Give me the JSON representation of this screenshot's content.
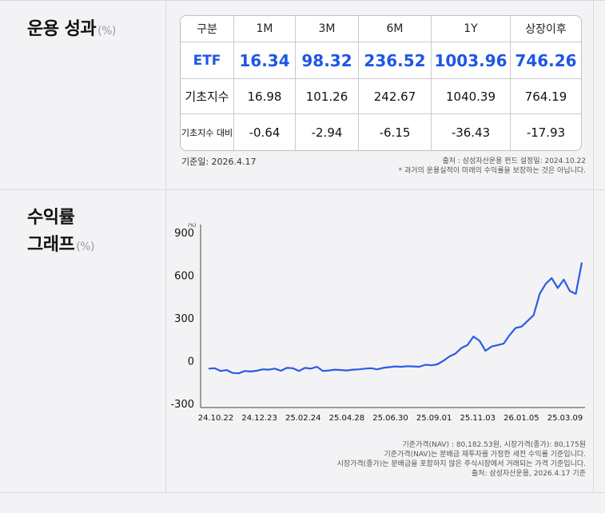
{
  "performance": {
    "title": "운용 성과",
    "unit": "(%)",
    "headers": [
      "구분",
      "1M",
      "3M",
      "6M",
      "1Y",
      "상장이후"
    ],
    "rows": [
      {
        "label": "ETF",
        "values": [
          "16.34",
          "98.32",
          "236.52",
          "1003.96",
          "746.26"
        ]
      },
      {
        "label": "기초지수",
        "values": [
          "16.98",
          "101.26",
          "242.67",
          "1040.39",
          "764.19"
        ]
      },
      {
        "label": "기초지수 대비",
        "values": [
          "-0.64",
          "-2.94",
          "-6.15",
          "-36.43",
          "-17.93"
        ]
      }
    ],
    "base_date": "기준일: 2026.4.17",
    "source_note": "출처 : 삼성자산운용  펀드 설정일: 2024.10.22",
    "disclaimer": "* 과거의 운용실적이 미래의 수익률을 보장하는 것은 아닙니다."
  },
  "graph": {
    "title_line1": "수익률",
    "title_line2": "그래프",
    "unit": "(%)",
    "notes": [
      "기준가격(NAV) : 80,182.53원, 시장가격(종가): 80,175원",
      "기준가격(NAV)는 분배금 재투자를 가정한 세전 수익률 기준입니다.",
      "시장가격(종가)는 분배금을 포함하지 않은 주식시장에서 거래되는 가격 기준입니다.",
      "출처: 삼성자산운용, 2026.4.17 기준"
    ]
  },
  "chart_data": {
    "type": "line",
    "ylabel": "(%)",
    "ylim": [
      -300,
      900
    ],
    "yticks": [
      900,
      600,
      300,
      0,
      -300
    ],
    "xticks": [
      "24.10.22",
      "24.12.23",
      "25.02.24",
      "25.04.28",
      "25.06.30",
      "25.09.01",
      "25.11.03",
      "26.01.05",
      "25.03.09"
    ],
    "grid": false,
    "color": "#2b5ce6",
    "series": [
      {
        "values": [
          -55,
          -52,
          -72,
          -65,
          -85,
          -88,
          -72,
          -75,
          -70,
          -60,
          -62,
          -55,
          -70,
          -50,
          -52,
          -72,
          -50,
          -55,
          -42,
          -72,
          -68,
          -62,
          -65,
          -68,
          -62,
          -60,
          -55,
          -52,
          -60,
          -50,
          -45,
          -40,
          -42,
          -38,
          -40,
          -42,
          -28,
          -32,
          -25,
          0,
          30,
          50,
          90,
          110,
          170,
          140,
          70,
          100,
          110,
          120,
          180,
          230,
          240,
          280,
          320,
          470,
          540,
          580,
          510,
          570,
          490,
          470,
          690
        ]
      }
    ]
  }
}
